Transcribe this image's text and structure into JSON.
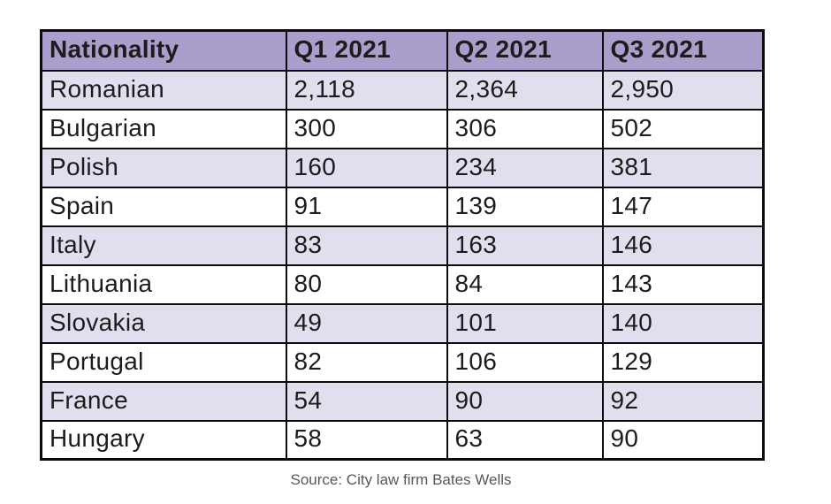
{
  "chart_data": {
    "type": "table",
    "columns": [
      "Nationality",
      "Q1 2021",
      "Q2 2021",
      "Q3 2021"
    ],
    "rows": [
      {
        "nationality": "Romanian",
        "values": [
          "2,118",
          "2,364",
          "2,950"
        ],
        "values_numeric": [
          2118,
          2364,
          2950
        ]
      },
      {
        "nationality": "Bulgarian",
        "values": [
          "300",
          "306",
          "502"
        ],
        "values_numeric": [
          300,
          306,
          502
        ]
      },
      {
        "nationality": "Polish",
        "values": [
          "160",
          "234",
          "381"
        ],
        "values_numeric": [
          160,
          234,
          381
        ]
      },
      {
        "nationality": "Spain",
        "values": [
          "91",
          "139",
          "147"
        ],
        "values_numeric": [
          91,
          139,
          147
        ]
      },
      {
        "nationality": "Italy",
        "values": [
          "83",
          "163",
          "146"
        ],
        "values_numeric": [
          83,
          163,
          146
        ]
      },
      {
        "nationality": "Lithuania",
        "values": [
          "80",
          "84",
          "143"
        ],
        "values_numeric": [
          80,
          84,
          143
        ]
      },
      {
        "nationality": "Slovakia",
        "values": [
          "49",
          "101",
          "140"
        ],
        "values_numeric": [
          49,
          101,
          140
        ]
      },
      {
        "nationality": "Portugal",
        "values": [
          "82",
          "106",
          "129"
        ],
        "values_numeric": [
          82,
          106,
          129
        ]
      },
      {
        "nationality": "France",
        "values": [
          "54",
          "90",
          "92"
        ],
        "values_numeric": [
          54,
          90,
          92
        ]
      },
      {
        "nationality": "Hungary",
        "values": [
          "58",
          "63",
          "90"
        ],
        "values_numeric": [
          58,
          63,
          90
        ]
      }
    ],
    "source_note": "Source: City law firm Bates Wells"
  },
  "colors": {
    "header_bg": "#ab9ecd",
    "stripe_bg": "#e3deee",
    "border": "#0d0d0d",
    "text": "#1c1c1c",
    "source_text": "#54585a"
  }
}
